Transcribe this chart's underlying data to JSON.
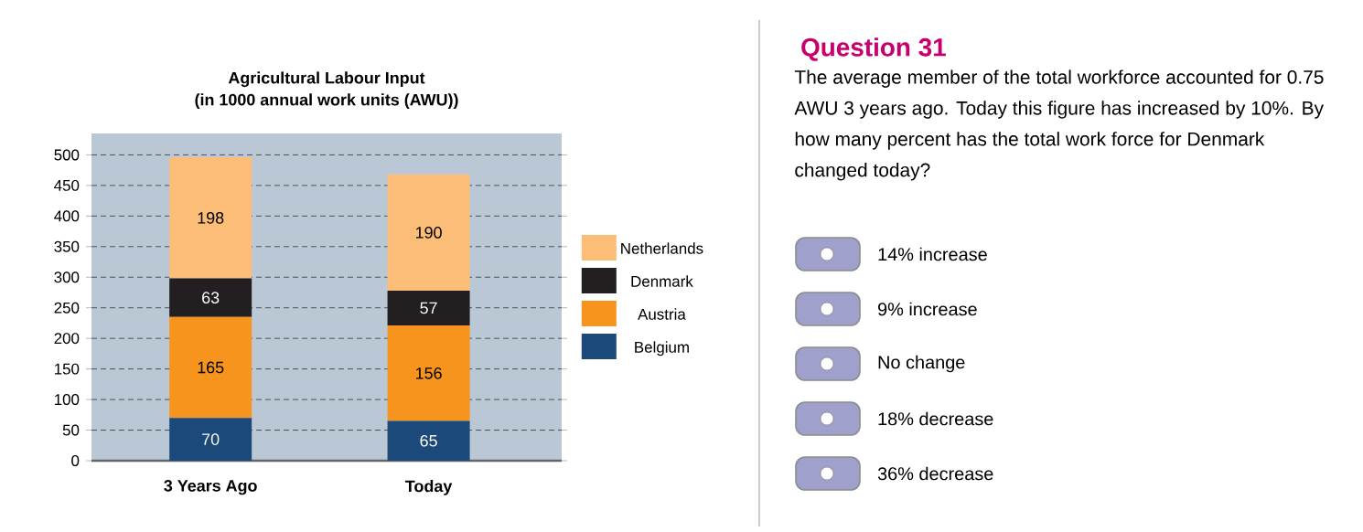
{
  "chart_data": [
    {
      "type": "bar",
      "title": "Agricultural Labour Input",
      "subtitle": "(in 1000 annual work units (AWU))",
      "stacked": true,
      "categories": [
        "3 Years Ago",
        "Today"
      ],
      "series": [
        {
          "name": "Belgium",
          "color": "#1b4a7a",
          "values": [
            70,
            65
          ]
        },
        {
          "name": "Austria",
          "color": "#f7941d",
          "values": [
            165,
            156
          ]
        },
        {
          "name": "Denmark",
          "color": "#231f20",
          "values": [
            63,
            57
          ]
        },
        {
          "name": "Netherlands",
          "color": "#fbbd78",
          "values": [
            198,
            190
          ]
        }
      ],
      "ylim": [
        0,
        535
      ],
      "yticks": [
        0,
        50,
        100,
        150,
        200,
        250,
        300,
        350,
        400,
        450,
        500
      ],
      "grid": "y",
      "legend": "right",
      "data_labels": true
    },
    {
      "type": "other",
      "title": "Question 31",
      "annotations": [
        "The average member of the total workforce accounted for 0.75 AWU 3 years ago. Today this figure has increased by 10%. By how many percent has the total work force for Denmark changed today?",
        "14% increase",
        "9% increase",
        "No change",
        "18% decrease",
        "36% decrease"
      ]
    }
  ]
}
